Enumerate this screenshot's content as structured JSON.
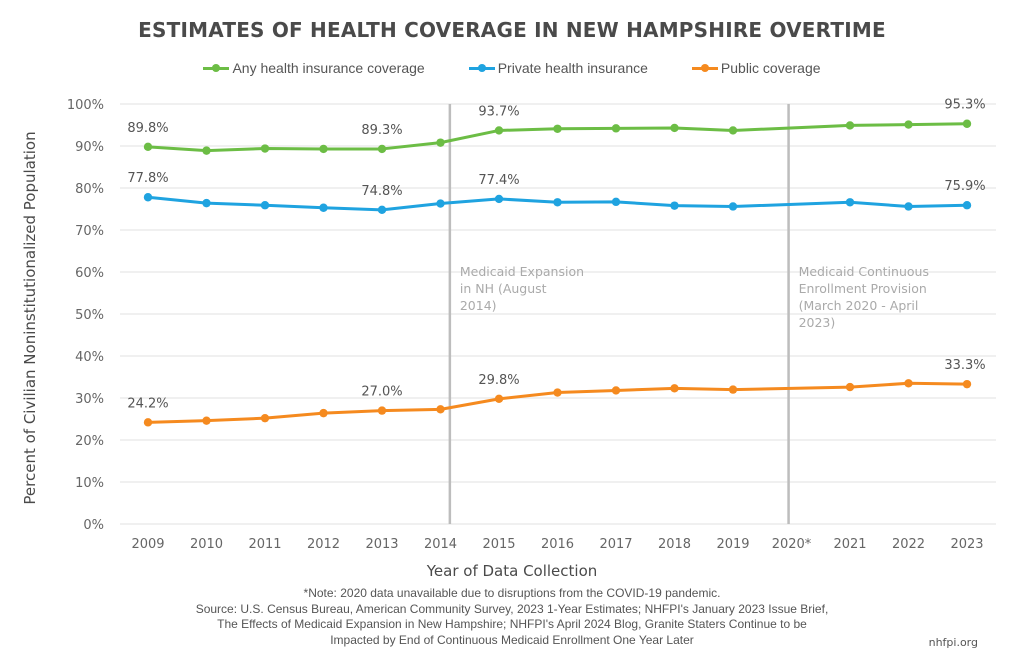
{
  "chart_data": {
    "type": "line",
    "title": "ESTIMATES OF HEALTH COVERAGE IN NEW HAMPSHIRE OVERTIME",
    "xlabel": "Year of Data Collection",
    "ylabel": "Percent of Civilian Noninstitutionalized Population",
    "ylim": [
      0,
      100
    ],
    "yticks": [
      0,
      10,
      20,
      30,
      40,
      50,
      60,
      70,
      80,
      90,
      100
    ],
    "ytick_suffix": "%",
    "grid": "horizontal",
    "legend_position": "top-center",
    "categories": [
      "2009",
      "2010",
      "2011",
      "2012",
      "2013",
      "2014",
      "2015",
      "2016",
      "2017",
      "2018",
      "2019",
      "2020*",
      "2021",
      "2022",
      "2023"
    ],
    "series": [
      {
        "name": "Any health insurance coverage",
        "color": "#6cbd45",
        "values": [
          89.8,
          88.9,
          89.4,
          89.3,
          89.3,
          90.8,
          93.7,
          94.1,
          94.2,
          94.3,
          93.7,
          null,
          94.9,
          95.1,
          95.3
        ],
        "labels": {
          "0": "89.8%",
          "4": "89.3%",
          "6": "93.7%",
          "14": "95.3%"
        }
      },
      {
        "name": "Private health insurance",
        "color": "#1fa3e0",
        "values": [
          77.8,
          76.4,
          75.9,
          75.3,
          74.8,
          76.3,
          77.4,
          76.6,
          76.7,
          75.8,
          75.6,
          null,
          76.6,
          75.6,
          75.9
        ],
        "labels": {
          "0": "77.8%",
          "4": "74.8%",
          "6": "77.4%",
          "14": "75.9%"
        }
      },
      {
        "name": "Public coverage",
        "color": "#f58a1f",
        "values": [
          24.2,
          24.6,
          25.2,
          26.4,
          27.0,
          27.3,
          29.8,
          31.3,
          31.8,
          32.3,
          32.0,
          null,
          32.6,
          33.5,
          33.3
        ],
        "labels": {
          "0": "24.2%",
          "4": "27.0%",
          "6": "29.8%",
          "14": "33.3%"
        }
      }
    ],
    "annotations": [
      {
        "after_category": "2014",
        "lines": [
          "Medicaid Expansion",
          "in NH (August",
          "2014)"
        ]
      },
      {
        "after_category": "2019",
        "lines": [
          "Medicaid Continuous",
          "Enrollment Provision",
          "(March 2020 - April",
          "2023)"
        ]
      }
    ]
  },
  "footer": {
    "note": "*Note: 2020 data unavailable due to disruptions from the COVID-19 pandemic.",
    "source_lines": [
      "Source: U.S. Census Bureau, American Community Survey, 2023 1-Year Estimates; NHFPI's January 2023 Issue Brief,",
      "The Effects of Medicaid Expansion in New Hampshire; NHFPI's April 2024 Blog, Granite Staters Continue to be",
      "Impacted by End of Continuous Medicaid Enrollment One Year Later"
    ],
    "site": "nhfpi.org"
  }
}
